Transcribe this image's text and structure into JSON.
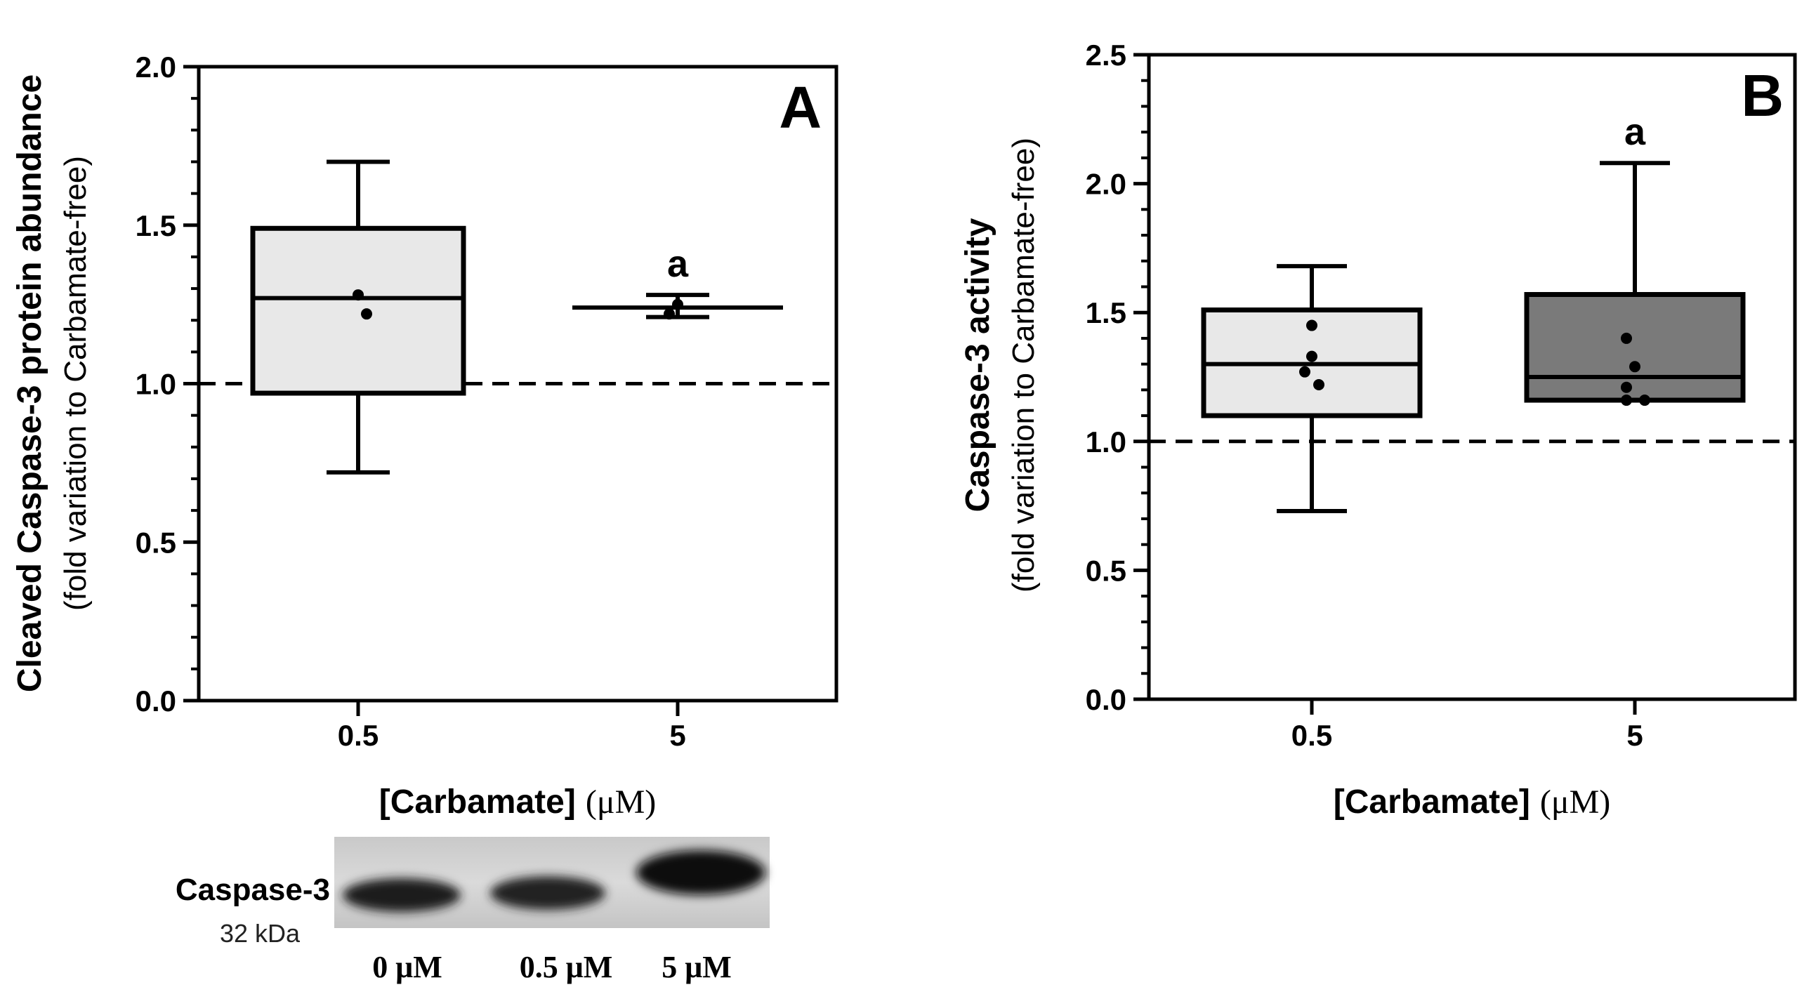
{
  "chart_data": [
    {
      "type": "box",
      "panel_label": "A",
      "ylabel": "Cleaved Caspase-3 protein abundance",
      "ylabel_sub": "(fold variation to Carbamate-free)",
      "xlabel": "[Carbamate]",
      "xlabel_unit": "(μM)",
      "ylim": [
        0,
        2.0
      ],
      "yticks": [
        0,
        0.5,
        1.0,
        1.5,
        2.0
      ],
      "ytick_labels": [
        "0.0",
        "0.5",
        "1.0",
        "1.5",
        "2.0"
      ],
      "reference_line": 1.0,
      "categories": [
        "0.5",
        "5"
      ],
      "boxes": [
        {
          "category": "0.5",
          "min": 0.72,
          "q1": 0.97,
          "median": 1.27,
          "q3": 1.49,
          "max": 1.7,
          "points": [
            1.28,
            1.22
          ],
          "sig": "",
          "fill": "#e8e8e8"
        },
        {
          "category": "5",
          "min": 1.21,
          "q1": 1.24,
          "median": 1.24,
          "q3": 1.24,
          "max": 1.28,
          "points": [
            1.25,
            1.22
          ],
          "sig": "a",
          "fill": "#e8e8e8"
        }
      ]
    },
    {
      "type": "box",
      "panel_label": "B",
      "ylabel": "Caspase-3 activity",
      "ylabel_sub": "(fold variation to Carbamate-free)",
      "xlabel": "[Carbamate]",
      "xlabel_unit": "(μM)",
      "ylim": [
        0,
        2.5
      ],
      "yticks": [
        0,
        0.5,
        1.0,
        1.5,
        2.0,
        2.5
      ],
      "ytick_labels": [
        "0.0",
        "0.5",
        "1.0",
        "1.5",
        "2.0",
        "2.5"
      ],
      "reference_line": 1.0,
      "categories": [
        "0.5",
        "5"
      ],
      "boxes": [
        {
          "category": "0.5",
          "min": 0.73,
          "q1": 1.1,
          "median": 1.3,
          "q3": 1.51,
          "max": 1.68,
          "points": [
            1.45,
            1.33,
            1.27,
            1.22
          ],
          "sig": "",
          "fill": "#e8e8e8"
        },
        {
          "category": "5",
          "min": 1.16,
          "q1": 1.16,
          "median": 1.25,
          "q3": 1.57,
          "max": 2.08,
          "points": [
            1.4,
            1.29,
            1.21,
            1.16,
            1.16
          ],
          "sig": "a",
          "fill": "#7a7a7a"
        }
      ]
    }
  ],
  "blot": {
    "protein": "Caspase-3",
    "mw": "32 kDa",
    "lanes": [
      "0 μM",
      "0.5 μM",
      "5 μM"
    ]
  }
}
